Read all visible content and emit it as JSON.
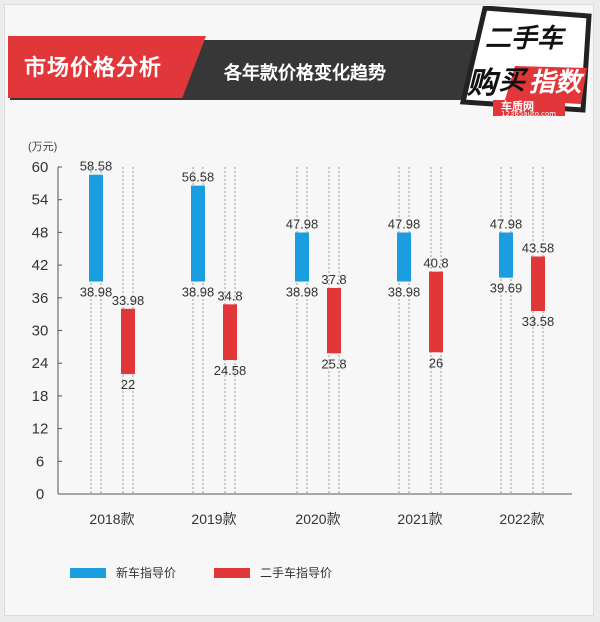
{
  "header": {
    "title": "市场价格分析",
    "subtitle": "各年款价格变化趋势",
    "badge_line1": "二手车",
    "badge_line2a": "购",
    "badge_line2b": "买",
    "badge_line2c": "指数",
    "badge_brand": "车质网",
    "badge_url": "12365auto.com"
  },
  "colors": {
    "new_car": "#1a9ee0",
    "used_car": "#e2373a",
    "accent": "#e2373a",
    "dark": "#373737"
  },
  "chart_data": {
    "type": "bar",
    "subtype": "floating-range",
    "unit_label": "(万元)",
    "categories": [
      "2018款",
      "2019款",
      "2020款",
      "2021款",
      "2022款"
    ],
    "ylim": [
      0,
      60
    ],
    "yticks": [
      0,
      6,
      12,
      18,
      24,
      30,
      36,
      42,
      48,
      54,
      60
    ],
    "grid": "vertical-dashed",
    "legend_position": "bottom",
    "series": [
      {
        "name": "新车指导价",
        "color": "#1a9ee0",
        "high": [
          58.58,
          56.58,
          47.98,
          47.98,
          47.98
        ],
        "low": [
          38.98,
          38.98,
          38.98,
          38.98,
          39.69
        ],
        "high_labels": [
          "58.58",
          "56.58",
          "47.98",
          "47.98",
          "47.98"
        ],
        "low_labels": [
          "38.98",
          "38.98",
          "38.98",
          "38.98",
          "39.69"
        ]
      },
      {
        "name": "二手车指导价",
        "color": "#e2373a",
        "high": [
          33.98,
          34.8,
          37.8,
          40.8,
          43.58
        ],
        "low": [
          22,
          24.58,
          25.8,
          26,
          33.58
        ],
        "high_labels": [
          "33.98",
          "34.8",
          "37.8",
          "40.8",
          "43.58"
        ],
        "low_labels": [
          "22",
          "24.58",
          "25.8",
          "26",
          "33.58"
        ]
      }
    ]
  }
}
